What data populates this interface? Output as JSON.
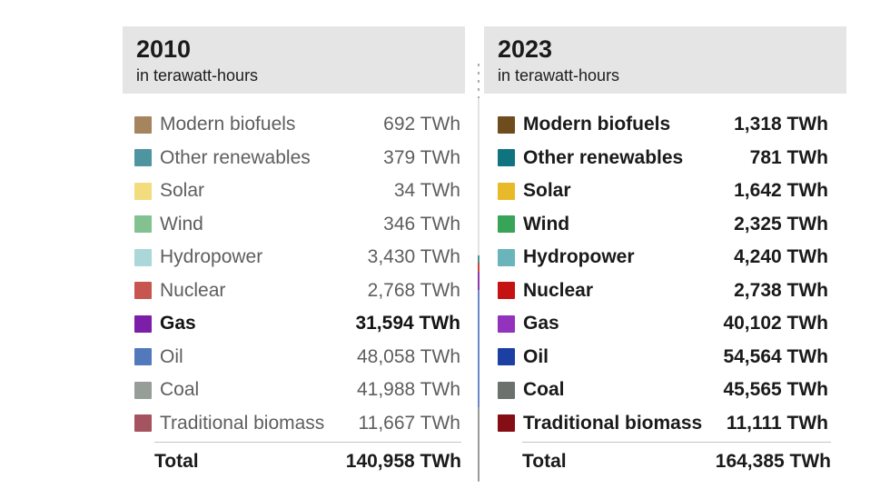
{
  "unit": "TWh",
  "panels": [
    {
      "title": "2010",
      "subtitle": "in terawatt-hours",
      "rows": [
        {
          "label": "Modern biofuels",
          "value": "692 TWh",
          "swatch": "#a6845e",
          "highlight": false
        },
        {
          "label": "Other renewables",
          "value": "379 TWh",
          "swatch": "#4f94a1",
          "highlight": false
        },
        {
          "label": "Solar",
          "value": "34 TWh",
          "swatch": "#f2dc7e",
          "highlight": false
        },
        {
          "label": "Wind",
          "value": "346 TWh",
          "swatch": "#83c290",
          "highlight": false
        },
        {
          "label": "Hydropower",
          "value": "3,430 TWh",
          "swatch": "#abd7d8",
          "highlight": false
        },
        {
          "label": "Nuclear",
          "value": "2,768 TWh",
          "swatch": "#c75550",
          "highlight": false
        },
        {
          "label": "Gas",
          "value": "31,594 TWh",
          "swatch": "#7c1fa8",
          "highlight": true
        },
        {
          "label": "Oil",
          "value": "48,058 TWh",
          "swatch": "#5379bd",
          "highlight": false
        },
        {
          "label": "Coal",
          "value": "41,988 TWh",
          "swatch": "#979d99",
          "highlight": false
        },
        {
          "label": "Traditional biomass",
          "value": "11,667 TWh",
          "swatch": "#a5535e",
          "highlight": false
        }
      ],
      "total_label": "Total",
      "total_value": "140,958 TWh"
    },
    {
      "title": "2023",
      "subtitle": "in terawatt-hours",
      "rows": [
        {
          "label": "Modern biofuels",
          "value": "1,318 TWh",
          "swatch": "#6e4c1d",
          "highlight": false
        },
        {
          "label": "Other renewables",
          "value": "781 TWh",
          "swatch": "#0f7480",
          "highlight": false
        },
        {
          "label": "Solar",
          "value": "1,642 TWh",
          "swatch": "#e8ba2a",
          "highlight": false
        },
        {
          "label": "Wind",
          "value": "2,325 TWh",
          "swatch": "#37a457",
          "highlight": false
        },
        {
          "label": "Hydropower",
          "value": "4,240 TWh",
          "swatch": "#6ab5bc",
          "highlight": false
        },
        {
          "label": "Nuclear",
          "value": "2,738 TWh",
          "swatch": "#c41312",
          "highlight": false
        },
        {
          "label": "Gas",
          "value": "40,102 TWh",
          "swatch": "#9232bd",
          "highlight": false
        },
        {
          "label": "Oil",
          "value": "54,564 TWh",
          "swatch": "#1c3fa4",
          "highlight": false
        },
        {
          "label": "Coal",
          "value": "45,565 TWh",
          "swatch": "#6b716d",
          "highlight": false
        },
        {
          "label": "Traditional biomass",
          "value": "11,111 TWh",
          "swatch": "#850d14",
          "highlight": false
        }
      ],
      "total_label": "Total",
      "total_value": "164,385 TWh"
    }
  ],
  "chart_data": {
    "type": "table",
    "title": "Energy consumption by source, 2010 vs 2023",
    "unit": "TWh",
    "categories": [
      "Modern biofuels",
      "Other renewables",
      "Solar",
      "Wind",
      "Hydropower",
      "Nuclear",
      "Gas",
      "Oil",
      "Coal",
      "Traditional biomass"
    ],
    "series": [
      {
        "name": "2010",
        "values": [
          692,
          379,
          34,
          346,
          3430,
          2768,
          31594,
          48058,
          41988,
          11667
        ],
        "total": 140958
      },
      {
        "name": "2023",
        "values": [
          1318,
          781,
          1642,
          2325,
          4240,
          2738,
          40102,
          54564,
          45565,
          11111
        ],
        "total": 164385
      }
    ],
    "highlighted_category": "Gas",
    "colors_2010": [
      "#a6845e",
      "#4f94a1",
      "#f2dc7e",
      "#83c290",
      "#abd7d8",
      "#c75550",
      "#7c1fa8",
      "#5379bd",
      "#979d99",
      "#a5535e"
    ],
    "colors_2023": [
      "#6e4c1d",
      "#0f7480",
      "#e8ba2a",
      "#37a457",
      "#6ab5bc",
      "#c41312",
      "#9232bd",
      "#1c3fa4",
      "#6b716d",
      "#850d14"
    ]
  }
}
